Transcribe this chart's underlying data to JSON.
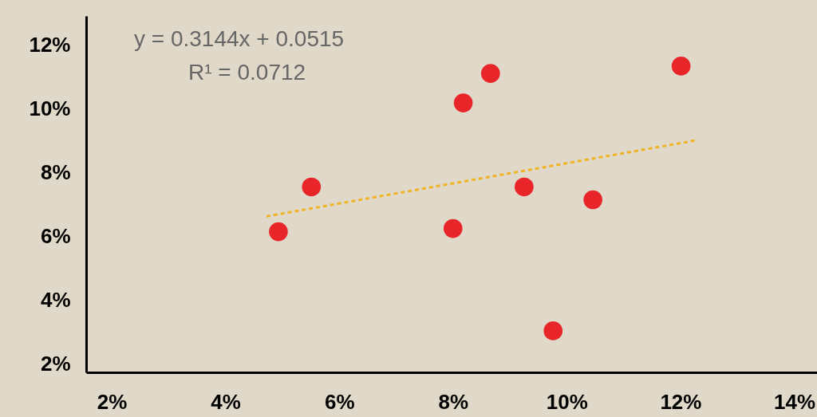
{
  "chart_data": {
    "type": "scatter",
    "xlim": [
      1.55,
      14.4
    ],
    "ylim": [
      1.75,
      12.9
    ],
    "xticks": [
      {
        "value": 2,
        "label": "2%"
      },
      {
        "value": 4,
        "label": "4%"
      },
      {
        "value": 6,
        "label": "6%"
      },
      {
        "value": 8,
        "label": "8%"
      },
      {
        "value": 10,
        "label": "10%"
      },
      {
        "value": 12,
        "label": "12%"
      },
      {
        "value": 14,
        "label": "14%"
      }
    ],
    "yticks": [
      {
        "value": 2,
        "label": "2%"
      },
      {
        "value": 4,
        "label": "4%"
      },
      {
        "value": 6,
        "label": "6%"
      },
      {
        "value": 8,
        "label": "8%"
      },
      {
        "value": 10,
        "label": "10%"
      },
      {
        "value": 12,
        "label": "12%"
      }
    ],
    "grid": false,
    "annotations": [
      "y = 0.3144x + 0.0515",
      "R¹ = 0.0712"
    ],
    "series": [
      {
        "marker": "circle",
        "color": "#e8262a",
        "x": [
          4.93,
          5.51,
          8.0,
          8.18,
          8.66,
          9.25,
          10.46,
          9.76,
          12.01
        ],
        "values": [
          6.15,
          7.55,
          6.25,
          10.18,
          11.1,
          7.55,
          7.15,
          3.05,
          11.33
        ]
      },
      {
        "type": "line",
        "color": "#f0b323",
        "line_style": "dashed",
        "x": [
          4.72,
          12.28
        ],
        "values": [
          6.63,
          9.01
        ]
      }
    ]
  }
}
